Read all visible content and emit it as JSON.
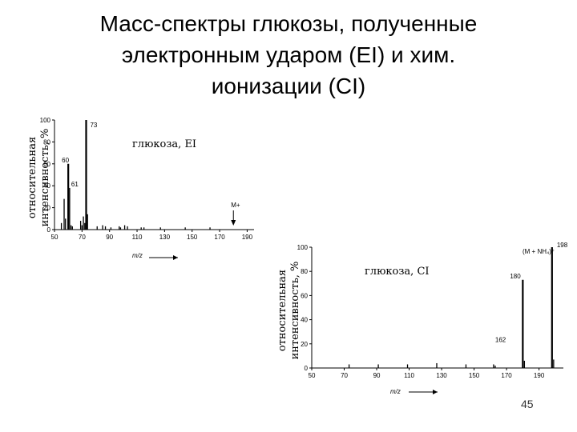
{
  "slide": {
    "title_lines": [
      "Масс-спектры глюкозы, полученные",
      "электронным ударом (EI) и хим.",
      "ионизации (CI)"
    ],
    "page_number": "45"
  },
  "chart_data": [
    {
      "type": "bar",
      "title": "глюкоза, EI",
      "ylabel_lines": [
        "относительная",
        "интенсивность, %"
      ],
      "xlabel": "m/z",
      "xlim": [
        50,
        195
      ],
      "ylim": [
        0,
        100
      ],
      "xticks": [
        50,
        70,
        90,
        110,
        130,
        150,
        170,
        190
      ],
      "yticks": [
        0,
        20,
        40,
        60,
        80,
        100
      ],
      "peaks": [
        {
          "x": 55,
          "y": 6
        },
        {
          "x": 57,
          "y": 28
        },
        {
          "x": 58,
          "y": 10
        },
        {
          "x": 60,
          "y": 60
        },
        {
          "x": 61,
          "y": 38
        },
        {
          "x": 62,
          "y": 4
        },
        {
          "x": 63,
          "y": 3
        },
        {
          "x": 69,
          "y": 8
        },
        {
          "x": 70,
          "y": 4
        },
        {
          "x": 71,
          "y": 12
        },
        {
          "x": 72,
          "y": 6
        },
        {
          "x": 73,
          "y": 100
        },
        {
          "x": 74,
          "y": 14
        },
        {
          "x": 81,
          "y": 3
        },
        {
          "x": 85,
          "y": 4
        },
        {
          "x": 87,
          "y": 3
        },
        {
          "x": 91,
          "y": 2
        },
        {
          "x": 97,
          "y": 3
        },
        {
          "x": 98,
          "y": 2
        },
        {
          "x": 101,
          "y": 4
        },
        {
          "x": 103,
          "y": 3
        },
        {
          "x": 113,
          "y": 2
        },
        {
          "x": 115,
          "y": 2
        },
        {
          "x": 127,
          "y": 2
        },
        {
          "x": 145,
          "y": 2
        },
        {
          "x": 163,
          "y": 2
        }
      ],
      "peak_labels": [
        {
          "x": 73,
          "y": 100,
          "text": "73"
        },
        {
          "x": 60,
          "y": 60,
          "text": "60"
        },
        {
          "x": 61,
          "y": 38,
          "text": "61"
        }
      ],
      "marker": {
        "x": 180,
        "text": "M+"
      }
    },
    {
      "type": "bar",
      "title": "глюкоза, CI",
      "ylabel_lines": [
        "относительная",
        "интенсивность, %"
      ],
      "xlabel": "m/z",
      "xlim": [
        50,
        205
      ],
      "ylim": [
        0,
        100
      ],
      "xticks": [
        50,
        70,
        90,
        110,
        130,
        150,
        170,
        190
      ],
      "yticks": [
        0,
        20,
        40,
        60,
        80,
        100
      ],
      "peaks": [
        {
          "x": 73,
          "y": 3
        },
        {
          "x": 91,
          "y": 3
        },
        {
          "x": 109,
          "y": 3
        },
        {
          "x": 127,
          "y": 4
        },
        {
          "x": 145,
          "y": 3
        },
        {
          "x": 162,
          "y": 3
        },
        {
          "x": 163,
          "y": 2
        },
        {
          "x": 180,
          "y": 73
        },
        {
          "x": 181,
          "y": 6
        },
        {
          "x": 198,
          "y": 100
        },
        {
          "x": 199,
          "y": 7
        }
      ],
      "peak_labels": [
        {
          "x": 180,
          "y": 73,
          "text": "180"
        },
        {
          "x": 198,
          "y": 100,
          "text": "198"
        },
        {
          "x": 162,
          "y": 3,
          "text": "162"
        }
      ],
      "annotation": "(M + NH₄)⁺"
    }
  ]
}
